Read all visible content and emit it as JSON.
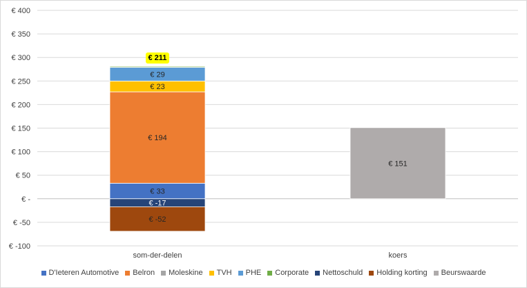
{
  "chart_data": {
    "type": "bar",
    "stacked": true,
    "categories": [
      "som-der-delen",
      "koers"
    ],
    "yaxis": {
      "min": -100,
      "max": 400,
      "step": 50,
      "tick_labels": [
        "€ -100",
        "€ -50",
        "€ -",
        "€ 50",
        "€ 100",
        "€ 150",
        "€ 200",
        "€ 250",
        "€ 300",
        "€ 350",
        "€ 400"
      ]
    },
    "grid": true,
    "legend_position": "bottom",
    "series": [
      {
        "name": "D'Ieteren Automotive",
        "color": "#4472c4",
        "values": [
          33,
          0
        ],
        "labels": [
          "€ 33",
          ""
        ]
      },
      {
        "name": "Belron",
        "color": "#ed7d31",
        "values": [
          194,
          0
        ],
        "labels": [
          "€ 194",
          ""
        ]
      },
      {
        "name": "Moleskine",
        "color": "#a5a5a5",
        "values": [
          0,
          0
        ],
        "labels": [
          "",
          ""
        ]
      },
      {
        "name": "TVH",
        "color": "#ffc000",
        "values": [
          23,
          0
        ],
        "labels": [
          "€ 23",
          ""
        ]
      },
      {
        "name": "PHE",
        "color": "#5b9bd5",
        "values": [
          29,
          0
        ],
        "labels": [
          "€ 29",
          ""
        ]
      },
      {
        "name": "Corporate",
        "color": "#70ad47",
        "values": [
          2,
          0
        ],
        "labels": [
          "",
          ""
        ]
      },
      {
        "name": "Nettoschuld",
        "color": "#264478",
        "values": [
          -17,
          0
        ],
        "labels": [
          "€ -17",
          ""
        ]
      },
      {
        "name": "Holding korting",
        "color": "#9e480e",
        "values": [
          -52,
          0
        ],
        "labels": [
          "€ -52",
          ""
        ]
      },
      {
        "name": "Beurswaarde",
        "color": "#afabab",
        "values": [
          0,
          151
        ],
        "labels": [
          "",
          "€ 151"
        ]
      }
    ],
    "total_callout": {
      "category": "som-der-delen",
      "label": "€ 211",
      "color": "#ffff00"
    }
  }
}
